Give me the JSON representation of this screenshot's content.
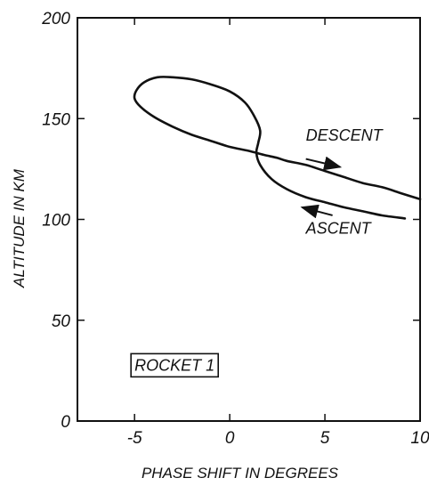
{
  "chart_data": {
    "type": "line",
    "xlabel": "PHASE SHIFT IN DEGREES",
    "ylabel": "ALTITUDE IN KM",
    "xlim": [
      -8,
      10
    ],
    "ylim": [
      0,
      200
    ],
    "xticks": [
      -5,
      0,
      5,
      10
    ],
    "yticks": [
      0,
      50,
      100,
      150,
      200
    ],
    "xtick_labels": [
      "-5",
      "0",
      "5",
      "10"
    ],
    "ytick_labels": [
      "0",
      "50",
      "100",
      "150",
      "200"
    ],
    "grid": false,
    "series": [
      {
        "points": [
          [
            10.0,
            110
          ],
          [
            9.0,
            113
          ],
          [
            8.0,
            116
          ],
          [
            7.0,
            118
          ],
          [
            6.0,
            121
          ],
          [
            5.0,
            124
          ],
          [
            4.0,
            127
          ],
          [
            3.0,
            129
          ],
          [
            2.5,
            130.5
          ],
          [
            1.8,
            132
          ],
          [
            1.0,
            134
          ],
          [
            0.0,
            136
          ],
          [
            -1.0,
            139
          ],
          [
            -2.0,
            142
          ],
          [
            -3.0,
            146
          ],
          [
            -4.0,
            151
          ],
          [
            -4.7,
            156
          ],
          [
            -5.0,
            160
          ],
          [
            -4.9,
            164
          ],
          [
            -4.5,
            168
          ],
          [
            -3.8,
            170.5
          ],
          [
            -3.0,
            170.5
          ],
          [
            -2.0,
            169.5
          ],
          [
            -1.0,
            167
          ],
          [
            0.0,
            163.5
          ],
          [
            0.8,
            158
          ],
          [
            1.3,
            151
          ],
          [
            1.6,
            144
          ],
          [
            1.5,
            138
          ],
          [
            1.4,
            133
          ],
          [
            1.6,
            127
          ],
          [
            2.2,
            120
          ],
          [
            3.0,
            115
          ],
          [
            4.0,
            111
          ],
          [
            5.0,
            108.5
          ],
          [
            6.0,
            106
          ],
          [
            7.0,
            104
          ],
          [
            8.0,
            102
          ],
          [
            9.2,
            100.5
          ]
        ]
      }
    ],
    "annotations": [
      {
        "text": "DESCENT",
        "x": 4.0,
        "y": 139
      },
      {
        "text": "ASCENT",
        "x": 4.0,
        "y": 93
      },
      {
        "text": "ROCKET 1",
        "x": -5.0,
        "y": 25,
        "boxed": true
      }
    ],
    "arrows": [
      {
        "label": "DESCENT",
        "from": [
          4.0,
          130
        ],
        "to": [
          5.8,
          126
        ]
      },
      {
        "label": "ASCENT",
        "from": [
          5.4,
          102
        ],
        "to": [
          3.8,
          106
        ]
      }
    ]
  }
}
